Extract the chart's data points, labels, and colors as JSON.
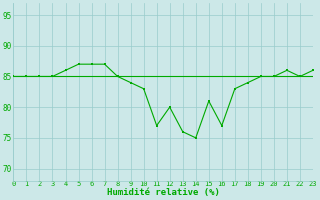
{
  "x": [
    0,
    1,
    2,
    3,
    4,
    5,
    6,
    7,
    8,
    9,
    10,
    11,
    12,
    13,
    14,
    15,
    16,
    17,
    18,
    19,
    20,
    21,
    22,
    23
  ],
  "y_main": [
    85,
    85,
    85,
    85,
    86,
    87,
    87,
    87,
    85,
    84,
    83,
    77,
    80,
    76,
    75,
    81,
    77,
    83,
    84,
    85,
    85,
    86,
    85,
    86
  ],
  "y_flat": [
    85,
    85,
    85,
    85,
    85,
    85,
    85,
    85,
    85,
    85,
    85,
    85,
    85,
    85,
    85,
    85,
    85,
    85,
    85,
    85,
    85,
    85,
    85,
    85
  ],
  "background_color": "#cce8e8",
  "grid_color": "#99cccc",
  "line_color": "#00aa00",
  "ylim": [
    68,
    97
  ],
  "yticks": [
    70,
    75,
    80,
    85,
    90,
    95
  ],
  "xlabel": "Humidité relative (%)",
  "xlabel_color": "#00aa00",
  "tick_color": "#00aa00",
  "figsize": [
    3.2,
    2.0
  ],
  "dpi": 100
}
